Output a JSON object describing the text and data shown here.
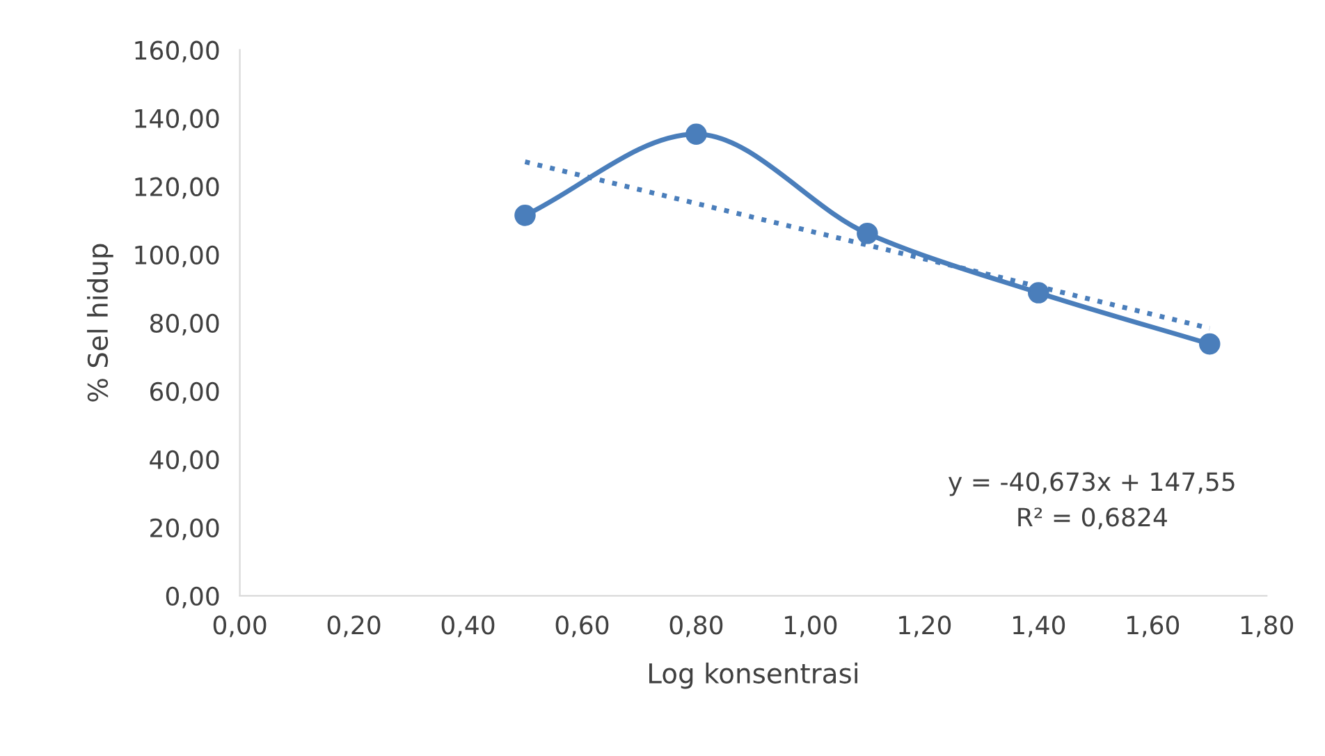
{
  "chart_data": {
    "type": "line",
    "xlabel": "Log konsentrasi",
    "ylabel": "% Sel hidup",
    "x": [
      0.5,
      0.8,
      1.1,
      1.4,
      1.7
    ],
    "series": [
      {
        "color": "#4a7ebb",
        "values": [
          111.5,
          135.3,
          106.2,
          88.8,
          73.8
        ],
        "marker": "circle",
        "line_style": "solid"
      },
      {
        "type": "line",
        "x": [
          0.5,
          1.7
        ],
        "color": "#4a7ebb",
        "values": [
          127.2,
          78.4
        ],
        "marker": "none",
        "line_style": "dotted"
      }
    ],
    "xlim": [
      0,
      1.8
    ],
    "xticks": [
      {
        "value": 0,
        "label": "0,00"
      },
      {
        "value": 0.2,
        "label": "0,20"
      },
      {
        "value": 0.4,
        "label": "0,40"
      },
      {
        "value": 0.6,
        "label": "0,60"
      },
      {
        "value": 0.8,
        "label": "0,80"
      },
      {
        "value": 1.0,
        "label": "1,00"
      },
      {
        "value": 1.2,
        "label": "1,20"
      },
      {
        "value": 1.4,
        "label": "1,40"
      },
      {
        "value": 1.6,
        "label": "1,60"
      },
      {
        "value": 1.8,
        "label": "1,80"
      }
    ],
    "ylim": [
      0,
      160
    ],
    "yticks": [
      {
        "value": 0,
        "label": "0,00"
      },
      {
        "value": 20,
        "label": "20,00"
      },
      {
        "value": 40,
        "label": "40,00"
      },
      {
        "value": 60,
        "label": "60,00"
      },
      {
        "value": 80,
        "label": "80,00"
      },
      {
        "value": 100,
        "label": "100,00"
      },
      {
        "value": 120,
        "label": "120,00"
      },
      {
        "value": 140,
        "label": "140,00"
      },
      {
        "value": 160,
        "label": "160,00"
      }
    ],
    "annotations": [
      "y = -40,673x + 147,55",
      "R² = 0,6824"
    ],
    "grid": false,
    "legend": false
  }
}
